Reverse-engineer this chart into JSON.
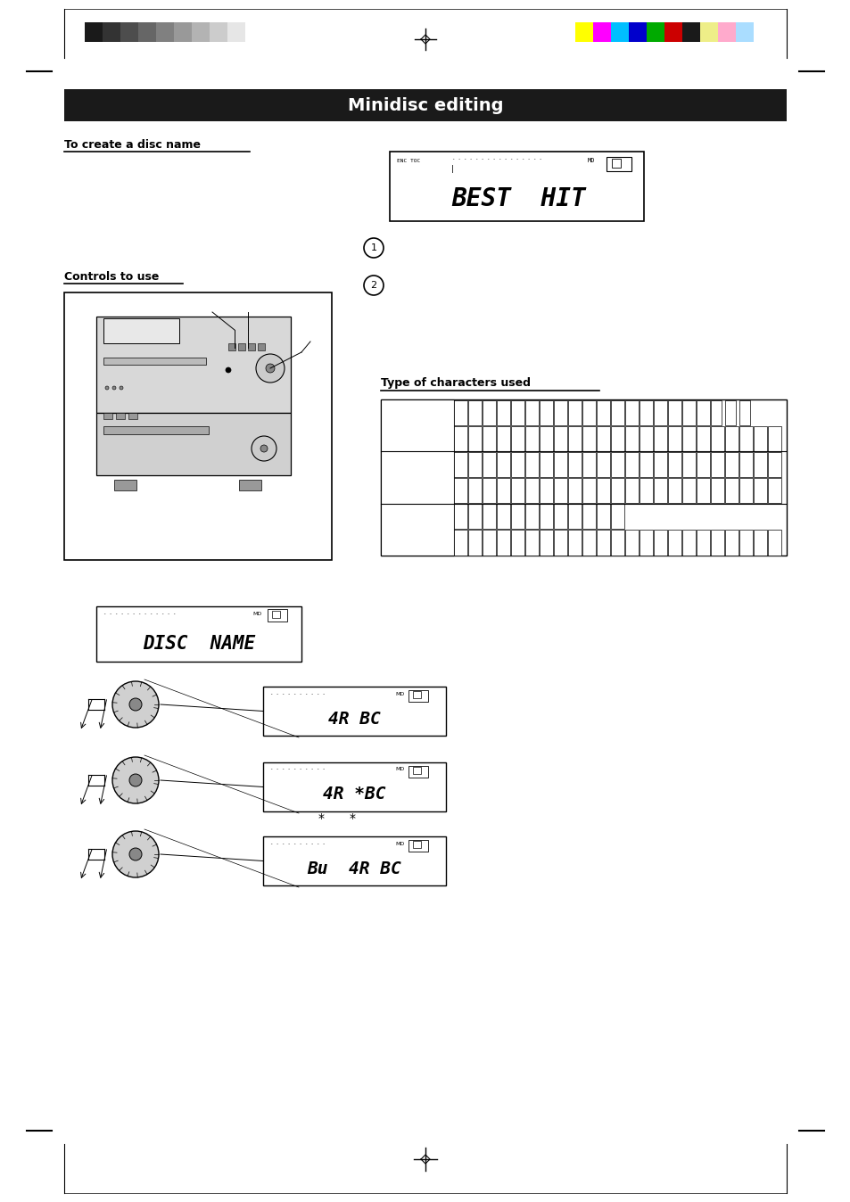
{
  "page_bg": "#ffffff",
  "title_bar_color": "#1a1a1a",
  "title_bar_text": "Minidisc editing",
  "title_bar_text_color": "#ffffff",
  "header_grayscale_colors": [
    "#1a1a1a",
    "#333333",
    "#4d4d4d",
    "#666666",
    "#808080",
    "#999999",
    "#b3b3b3",
    "#cccccc",
    "#e6e6e6",
    "#ffffff"
  ],
  "header_color_colors": [
    "#ffff00",
    "#ff00ff",
    "#00bfff",
    "#0000cc",
    "#00aa00",
    "#cc0000",
    "#1a1a1a",
    "#eeee88",
    "#ffaacc",
    "#aaddff"
  ],
  "subtitle_disc_name": "To create a disc name",
  "subtitle_controls": "Controls to use",
  "subtitle_char_type": "Type of characters used",
  "circle1_label": "1",
  "circle2_label": "2",
  "display_best_hit_text": "BEST  HIT",
  "display_disc_name_text": "DISC  NAME",
  "display_md_label": "MD",
  "display_enc_toc": "ENC TOC",
  "dial_display_text1": "4R BC",
  "dial_display_text2": "4R *BC",
  "dial_display_text3": "Bu  4R BC"
}
